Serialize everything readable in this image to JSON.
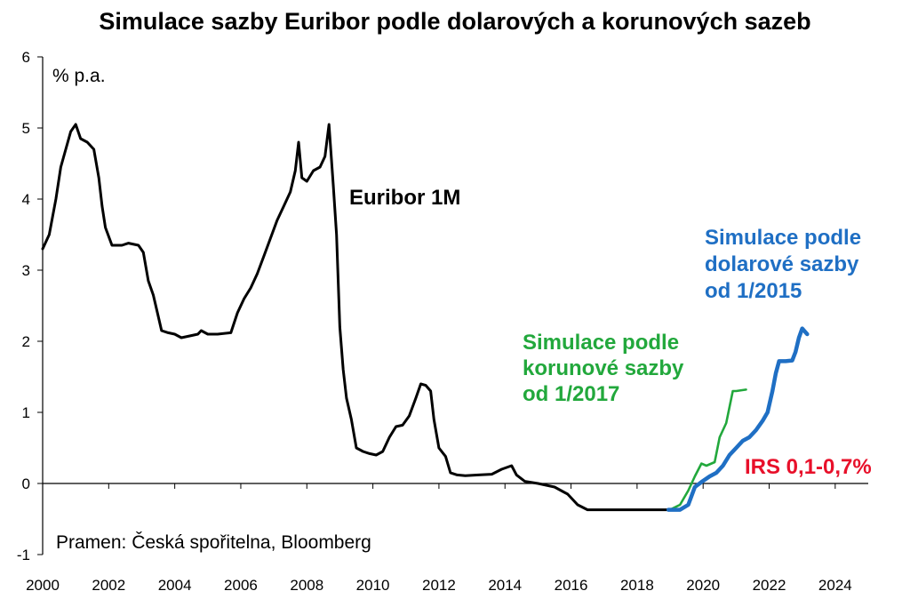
{
  "chart_data": {
    "type": "line",
    "title": "Simulace sazby Euribor podle dolarových a korunových sazeb",
    "ylabel": "% p.a.",
    "xlim": [
      2000,
      2025
    ],
    "ylim": [
      -1,
      6
    ],
    "x_ticks": [
      "2000",
      "2002",
      "2004",
      "2006",
      "2008",
      "2010",
      "2012",
      "2014",
      "2016",
      "2018",
      "2020",
      "2022",
      "2024"
    ],
    "y_ticks": [
      "-1",
      "0",
      "1",
      "2",
      "3",
      "4",
      "5",
      "6"
    ],
    "grid": false,
    "source": "Pramen: Česká spořitelna, Bloomberg",
    "labels": {
      "euribor": "Euribor 1M",
      "green": [
        "Simulace podle",
        "korunové sazby",
        "od 1/2017"
      ],
      "blue": [
        "Simulace podle",
        "dolarové sazby",
        "od 1/2015"
      ],
      "irs": "IRS 0,1-0,7%"
    },
    "colors": {
      "euribor": "#000000",
      "green": "#22a83c",
      "blue": "#1f6fc4",
      "irs": "#e8102a"
    },
    "series": [
      {
        "key": "euribor",
        "points": [
          [
            2000.0,
            3.3
          ],
          [
            2000.2,
            3.5
          ],
          [
            2000.4,
            4.0
          ],
          [
            2000.55,
            4.45
          ],
          [
            2000.7,
            4.7
          ],
          [
            2000.85,
            4.95
          ],
          [
            2001.0,
            5.05
          ],
          [
            2001.15,
            4.85
          ],
          [
            2001.35,
            4.8
          ],
          [
            2001.55,
            4.7
          ],
          [
            2001.7,
            4.3
          ],
          [
            2001.8,
            3.9
          ],
          [
            2001.9,
            3.6
          ],
          [
            2002.1,
            3.35
          ],
          [
            2002.4,
            3.35
          ],
          [
            2002.6,
            3.38
          ],
          [
            2002.9,
            3.35
          ],
          [
            2003.05,
            3.25
          ],
          [
            2003.2,
            2.85
          ],
          [
            2003.35,
            2.65
          ],
          [
            2003.5,
            2.35
          ],
          [
            2003.6,
            2.15
          ],
          [
            2003.8,
            2.12
          ],
          [
            2004.0,
            2.1
          ],
          [
            2004.2,
            2.05
          ],
          [
            2004.5,
            2.08
          ],
          [
            2004.7,
            2.1
          ],
          [
            2004.8,
            2.15
          ],
          [
            2005.0,
            2.1
          ],
          [
            2005.3,
            2.1
          ],
          [
            2005.7,
            2.12
          ],
          [
            2005.9,
            2.4
          ],
          [
            2006.1,
            2.6
          ],
          [
            2006.3,
            2.75
          ],
          [
            2006.5,
            2.95
          ],
          [
            2006.7,
            3.2
          ],
          [
            2006.9,
            3.45
          ],
          [
            2007.1,
            3.7
          ],
          [
            2007.3,
            3.9
          ],
          [
            2007.5,
            4.1
          ],
          [
            2007.65,
            4.4
          ],
          [
            2007.75,
            4.8
          ],
          [
            2007.85,
            4.3
          ],
          [
            2008.0,
            4.25
          ],
          [
            2008.2,
            4.4
          ],
          [
            2008.4,
            4.45
          ],
          [
            2008.55,
            4.6
          ],
          [
            2008.67,
            5.05
          ],
          [
            2008.8,
            4.2
          ],
          [
            2008.9,
            3.5
          ],
          [
            2009.0,
            2.2
          ],
          [
            2009.1,
            1.6
          ],
          [
            2009.2,
            1.2
          ],
          [
            2009.35,
            0.9
          ],
          [
            2009.5,
            0.5
          ],
          [
            2009.7,
            0.45
          ],
          [
            2009.9,
            0.42
          ],
          [
            2010.1,
            0.4
          ],
          [
            2010.3,
            0.45
          ],
          [
            2010.5,
            0.65
          ],
          [
            2010.7,
            0.8
          ],
          [
            2010.9,
            0.82
          ],
          [
            2011.1,
            0.95
          ],
          [
            2011.3,
            1.2
          ],
          [
            2011.45,
            1.4
          ],
          [
            2011.6,
            1.38
          ],
          [
            2011.75,
            1.3
          ],
          [
            2011.85,
            0.9
          ],
          [
            2012.0,
            0.5
          ],
          [
            2012.2,
            0.38
          ],
          [
            2012.35,
            0.15
          ],
          [
            2012.55,
            0.12
          ],
          [
            2012.8,
            0.11
          ],
          [
            2013.2,
            0.12
          ],
          [
            2013.6,
            0.13
          ],
          [
            2013.9,
            0.2
          ],
          [
            2014.2,
            0.25
          ],
          [
            2014.35,
            0.12
          ],
          [
            2014.6,
            0.03
          ],
          [
            2015.0,
            0.0
          ],
          [
            2015.5,
            -0.05
          ],
          [
            2015.9,
            -0.15
          ],
          [
            2016.2,
            -0.3
          ],
          [
            2016.5,
            -0.37
          ],
          [
            2017.0,
            -0.37
          ],
          [
            2017.5,
            -0.37
          ],
          [
            2018.0,
            -0.37
          ],
          [
            2018.5,
            -0.37
          ],
          [
            2018.95,
            -0.37
          ]
        ]
      },
      {
        "key": "green",
        "name": "Simulace podle korunové sazby od 1/2017",
        "points": [
          [
            2019.0,
            -0.37
          ],
          [
            2019.3,
            -0.3
          ],
          [
            2019.55,
            -0.1
          ],
          [
            2019.75,
            0.1
          ],
          [
            2019.95,
            0.28
          ],
          [
            2020.1,
            0.25
          ],
          [
            2020.35,
            0.3
          ],
          [
            2020.5,
            0.65
          ],
          [
            2020.7,
            0.85
          ],
          [
            2020.9,
            1.3
          ],
          [
            2021.0,
            1.3
          ],
          [
            2021.3,
            1.32
          ]
        ]
      },
      {
        "key": "blue",
        "name": "Simulace podle dolarové sazby od 1/2015",
        "points": [
          [
            2018.95,
            -0.37
          ],
          [
            2019.3,
            -0.37
          ],
          [
            2019.55,
            -0.3
          ],
          [
            2019.75,
            -0.05
          ],
          [
            2019.95,
            0.02
          ],
          [
            2020.2,
            0.1
          ],
          [
            2020.4,
            0.15
          ],
          [
            2020.6,
            0.25
          ],
          [
            2020.8,
            0.4
          ],
          [
            2021.0,
            0.5
          ],
          [
            2021.2,
            0.6
          ],
          [
            2021.4,
            0.65
          ],
          [
            2021.6,
            0.75
          ],
          [
            2021.8,
            0.88
          ],
          [
            2021.95,
            1.0
          ],
          [
            2022.1,
            1.3
          ],
          [
            2022.2,
            1.55
          ],
          [
            2022.3,
            1.72
          ],
          [
            2022.5,
            1.72
          ],
          [
            2022.7,
            1.73
          ],
          [
            2022.8,
            1.85
          ],
          [
            2022.9,
            2.05
          ],
          [
            2023.0,
            2.18
          ],
          [
            2023.15,
            2.1
          ]
        ]
      }
    ]
  }
}
